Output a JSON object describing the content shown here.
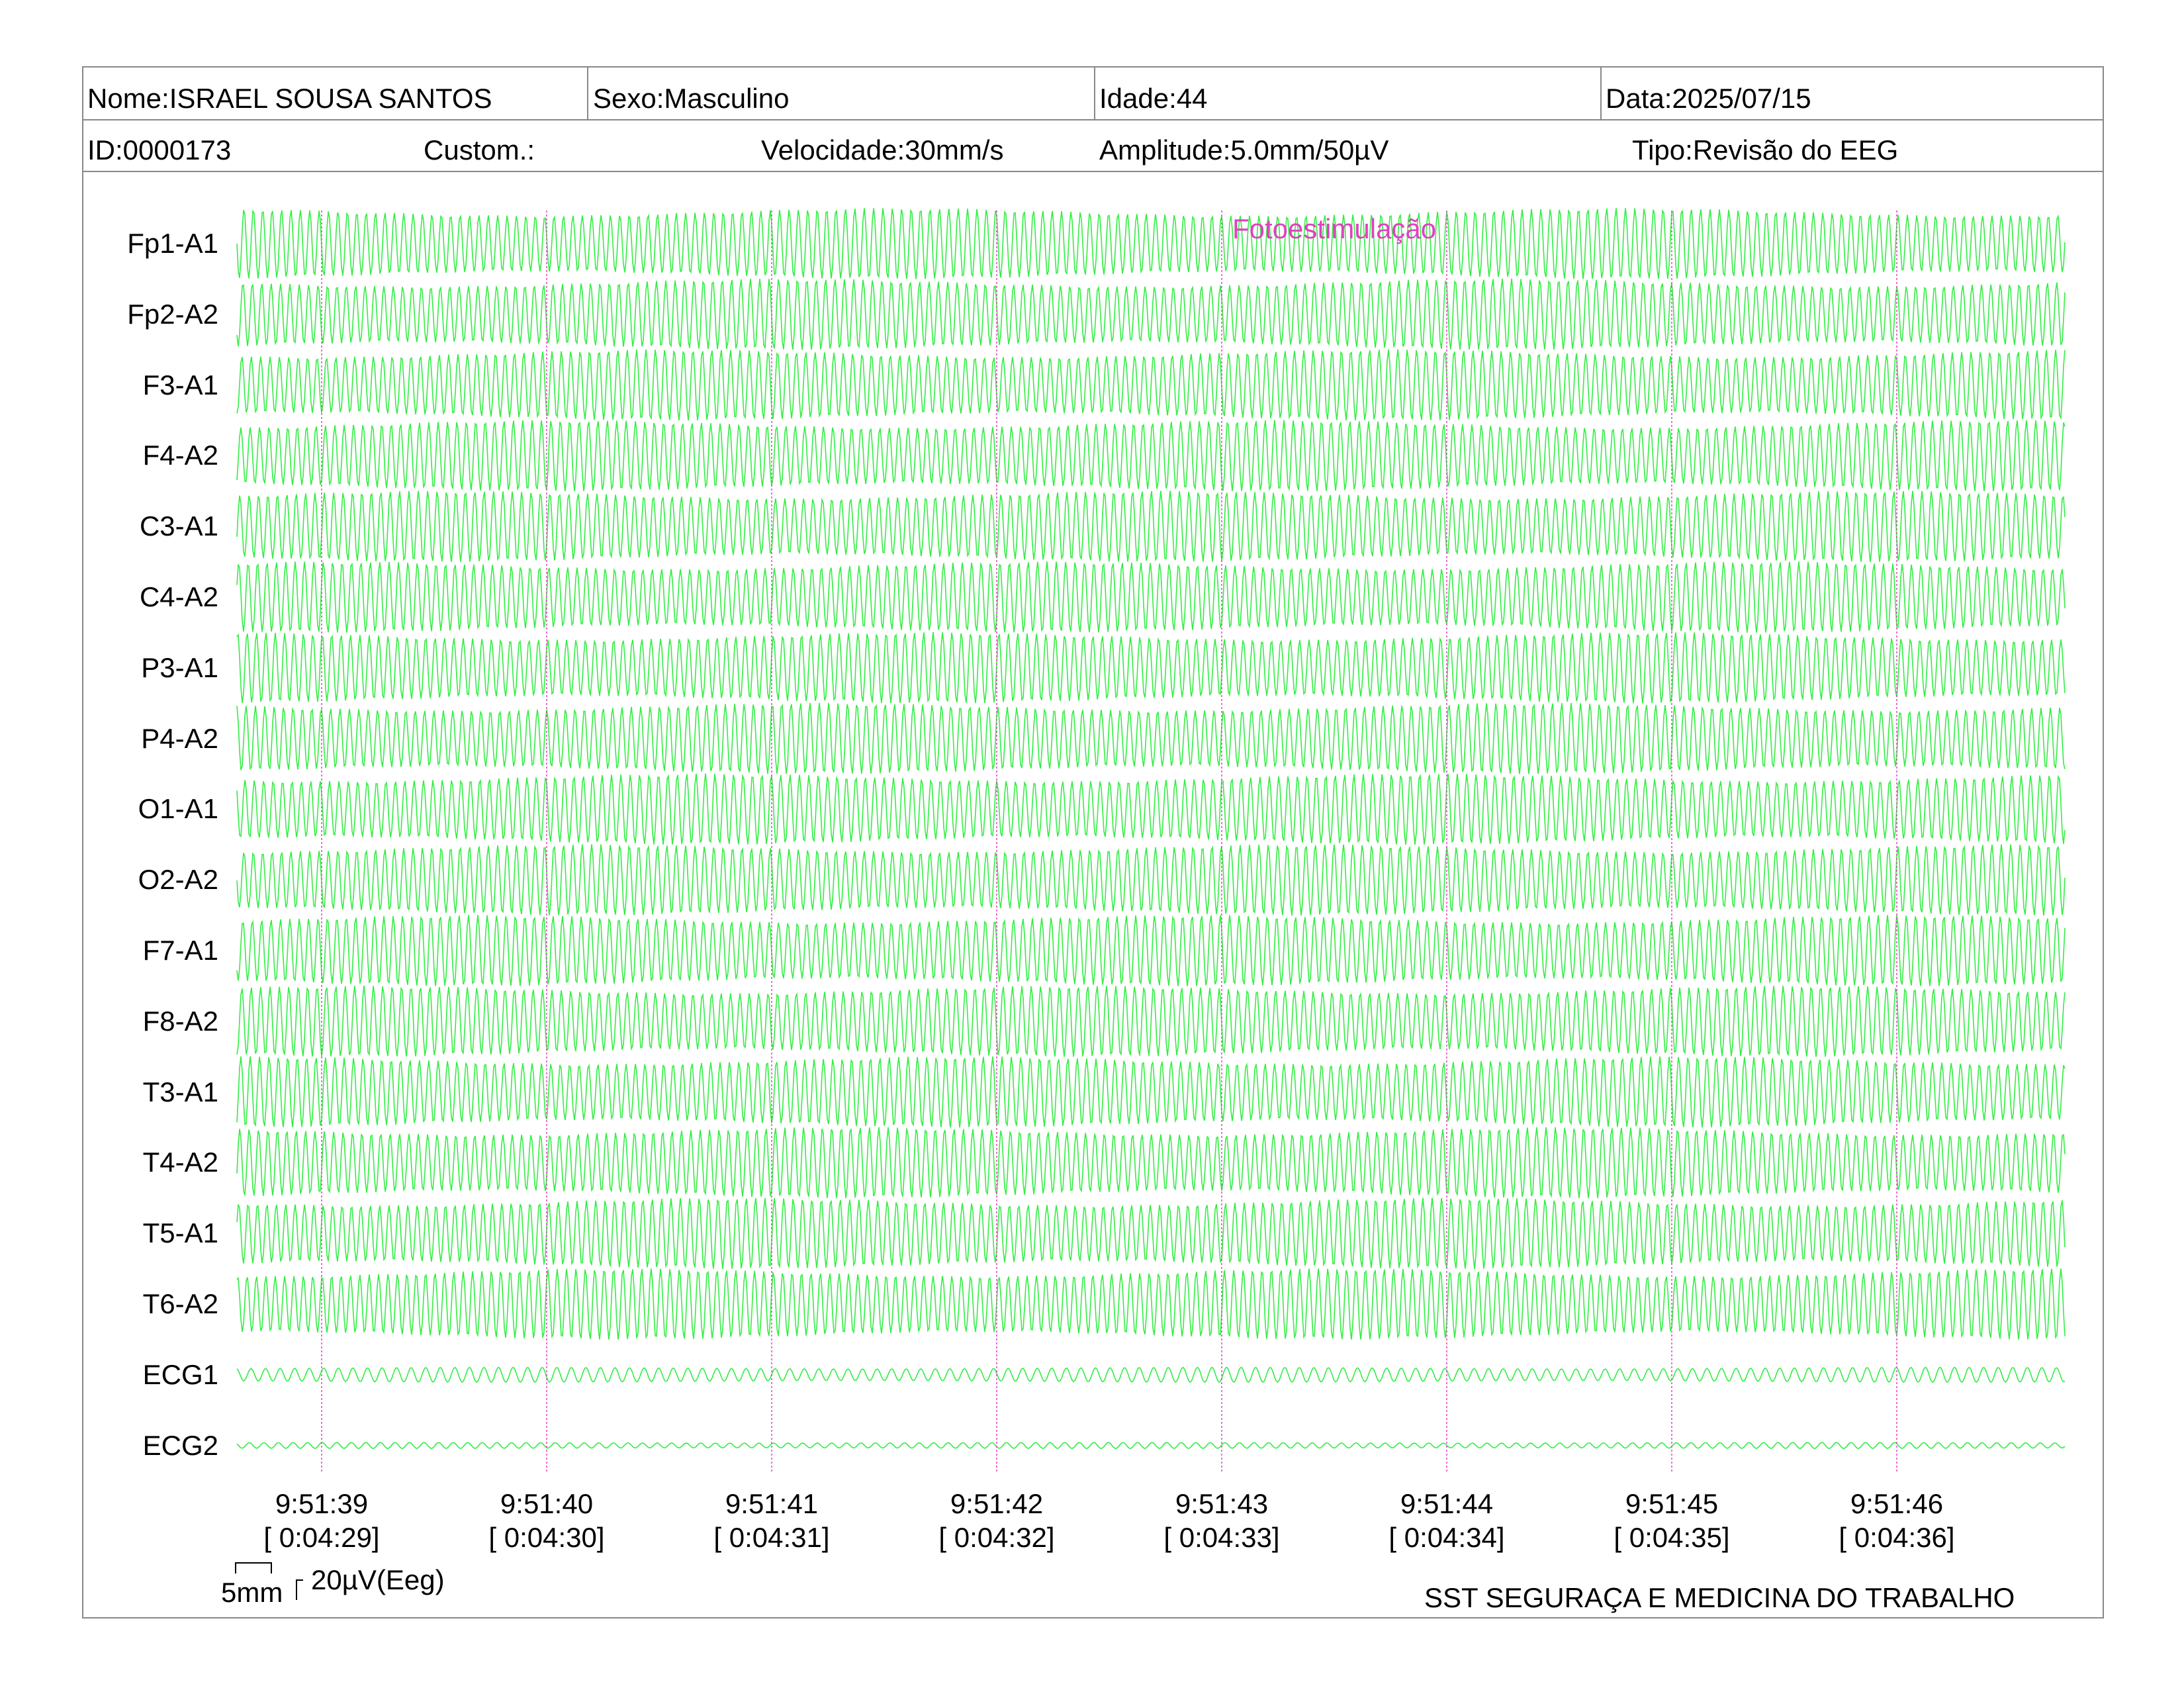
{
  "header": {
    "nome": "Nome:ISRAEL SOUSA SANTOS",
    "sexo": "Sexo:Masculino",
    "idade": "Idade:44",
    "data": "Data:2025/07/15",
    "id": "ID:0000173",
    "custom": "Custom.:",
    "velocidade": "Velocidade:30mm/s",
    "amplitude": "Amplitude:5.0mm/50µV",
    "tipo": "Tipo:Revisão do EEG"
  },
  "event_marker": "Fotoestimulação",
  "channels": [
    "Fp1-A1",
    "Fp2-A2",
    "F3-A1",
    "F4-A2",
    "C3-A1",
    "C4-A2",
    "P3-A1",
    "P4-A2",
    "O1-A1",
    "O2-A2",
    "F7-A1",
    "F8-A2",
    "T3-A1",
    "T4-A2",
    "T5-A1",
    "T6-A2",
    "ECG1",
    "ECG2"
  ],
  "time_ticks": [
    {
      "clock": "9:51:39",
      "elapsed": "[ 0:04:29]"
    },
    {
      "clock": "9:51:40",
      "elapsed": "[ 0:04:30]"
    },
    {
      "clock": "9:51:41",
      "elapsed": "[ 0:04:31]"
    },
    {
      "clock": "9:51:42",
      "elapsed": "[ 0:04:32]"
    },
    {
      "clock": "9:51:43",
      "elapsed": "[ 0:04:33]"
    },
    {
      "clock": "9:51:44",
      "elapsed": "[ 0:04:34]"
    },
    {
      "clock": "9:51:45",
      "elapsed": "[ 0:04:35]"
    },
    {
      "clock": "9:51:46",
      "elapsed": "[ 0:04:36]"
    }
  ],
  "scale": {
    "time": "5mm",
    "amplitude": "20µV(Eeg)"
  },
  "footer": "SST SEGURAÇA E MEDICINA DO TRABALHO",
  "colors": {
    "trace": "#33ee44",
    "marker": "#e040c0",
    "border": "#888888"
  }
}
